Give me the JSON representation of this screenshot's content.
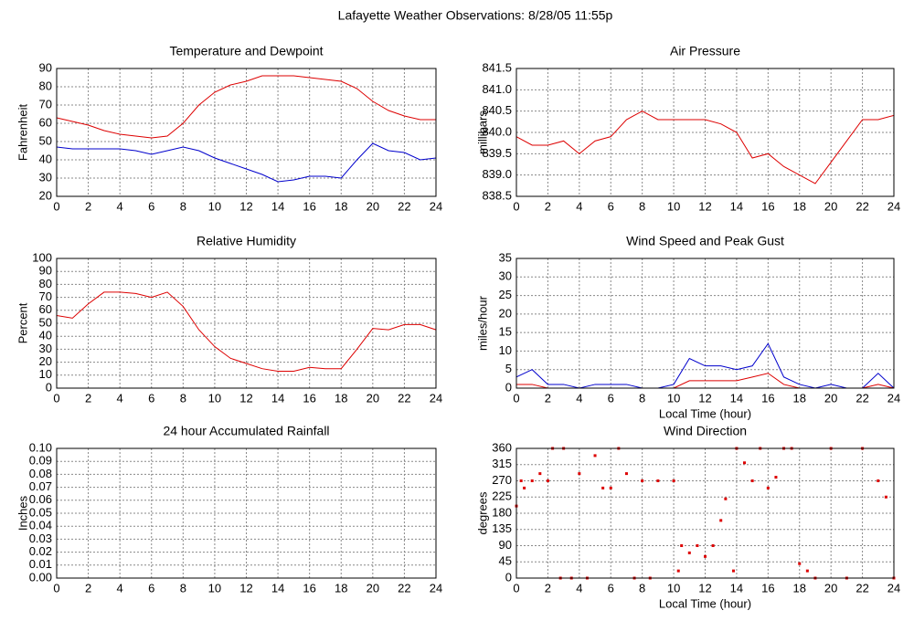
{
  "title": "Lafayette Weather Observations: 8/28/05 11:55p",
  "chart_data": [
    {
      "type": "line",
      "title": "Temperature and Dewpoint",
      "y_label": "Fahrenheit",
      "x": [
        0,
        1,
        2,
        3,
        4,
        5,
        6,
        7,
        8,
        9,
        10,
        11,
        12,
        13,
        14,
        15,
        16,
        17,
        18,
        19,
        20,
        21,
        22,
        23,
        24
      ],
      "series": [
        {
          "color": "#dd0000",
          "values": [
            63,
            61,
            59,
            56,
            54,
            53,
            52,
            53,
            60,
            70,
            77,
            81,
            83,
            86,
            86,
            86,
            85,
            84,
            83,
            79,
            72,
            67,
            64,
            62,
            62
          ]
        },
        {
          "color": "#0000cc",
          "values": [
            47,
            46,
            46,
            46,
            46,
            45,
            43,
            45,
            47,
            45,
            41,
            38,
            35,
            32,
            28,
            29,
            31,
            31,
            30,
            40,
            49,
            45,
            44,
            40,
            41
          ]
        }
      ],
      "xlim": [
        0,
        24
      ],
      "xticks": [
        0,
        2,
        4,
        6,
        8,
        10,
        12,
        14,
        16,
        18,
        20,
        22,
        24
      ],
      "ylim": [
        20,
        90
      ],
      "yticks": [
        20,
        30,
        40,
        50,
        60,
        70,
        80,
        90
      ],
      "grid": true
    },
    {
      "type": "line",
      "title": "Air Pressure",
      "y_label": "millibars",
      "x": [
        0,
        1,
        2,
        3,
        4,
        5,
        6,
        7,
        8,
        9,
        10,
        11,
        12,
        13,
        14,
        15,
        16,
        17,
        18,
        19,
        20,
        21,
        22,
        23,
        24
      ],
      "series": [
        {
          "color": "#dd0000",
          "values": [
            839.9,
            839.7,
            839.7,
            839.8,
            839.5,
            839.8,
            839.9,
            840.3,
            840.5,
            840.3,
            840.3,
            840.3,
            840.3,
            840.2,
            840.0,
            839.4,
            839.5,
            839.2,
            839.0,
            838.8,
            839.3,
            839.8,
            840.3,
            840.3,
            840.4
          ]
        }
      ],
      "xlim": [
        0,
        24
      ],
      "xticks": [
        0,
        2,
        4,
        6,
        8,
        10,
        12,
        14,
        16,
        18,
        20,
        22,
        24
      ],
      "ylim": [
        838.5,
        841.5
      ],
      "yticks": [
        838.5,
        {
          "value": 839,
          "label": "839.0"
        },
        839.5,
        {
          "value": 840,
          "label": "840.0"
        },
        840.5,
        {
          "value": 841,
          "label": "841.0"
        },
        841.5
      ],
      "grid": true
    },
    {
      "type": "line",
      "title": "Relative Humidity",
      "y_label": "Percent",
      "x": [
        0,
        1,
        2,
        3,
        4,
        5,
        6,
        7,
        8,
        9,
        10,
        11,
        12,
        13,
        14,
        15,
        16,
        17,
        18,
        19,
        20,
        21,
        22,
        23,
        24
      ],
      "series": [
        {
          "color": "#dd0000",
          "values": [
            56,
            54,
            65,
            74,
            74,
            73,
            70,
            74,
            63,
            45,
            32,
            23,
            19,
            15,
            13,
            13,
            16,
            15,
            15,
            30,
            46,
            45,
            49,
            49,
            45
          ]
        }
      ],
      "xlim": [
        0,
        24
      ],
      "xticks": [
        0,
        2,
        4,
        6,
        8,
        10,
        12,
        14,
        16,
        18,
        20,
        22,
        24
      ],
      "ylim": [
        0,
        100
      ],
      "yticks": [
        0,
        10,
        20,
        30,
        40,
        50,
        60,
        70,
        80,
        90,
        100
      ],
      "grid": true
    },
    {
      "type": "line",
      "title": "Wind Speed and Peak Gust",
      "y_label": "miles/hour",
      "x_label": "Local Time (hour)",
      "x": [
        0,
        1,
        2,
        3,
        4,
        5,
        6,
        7,
        8,
        9,
        10,
        11,
        12,
        13,
        14,
        15,
        16,
        17,
        18,
        19,
        20,
        21,
        22,
        23,
        24
      ],
      "series": [
        {
          "color": "#0000cc",
          "values": [
            3,
            5,
            1,
            1,
            0,
            1,
            1,
            1,
            0,
            0,
            1,
            8,
            6,
            6,
            5,
            6,
            12,
            3,
            1,
            0,
            1,
            0,
            0,
            4,
            0
          ]
        },
        {
          "color": "#dd0000",
          "values": [
            1,
            1,
            0,
            0,
            0,
            0,
            0,
            0,
            0,
            0,
            0,
            2,
            2,
            2,
            2,
            3,
            4,
            1,
            0,
            0,
            0,
            0,
            0,
            1,
            0
          ]
        }
      ],
      "xlim": [
        0,
        24
      ],
      "xticks": [
        0,
        2,
        4,
        6,
        8,
        10,
        12,
        14,
        16,
        18,
        20,
        22,
        24
      ],
      "ylim": [
        0,
        35
      ],
      "yticks": [
        0,
        5,
        10,
        15,
        20,
        25,
        30,
        35
      ],
      "grid": true
    },
    {
      "type": "line",
      "title": "24 hour Accumulated Rainfall",
      "y_label": "Inches",
      "x": [
        0,
        1,
        2,
        3,
        4,
        5,
        6,
        7,
        8,
        9,
        10,
        11,
        12,
        13,
        14,
        15,
        16,
        17,
        18,
        19,
        20,
        21,
        22,
        23,
        24
      ],
      "series": [
        {
          "color": "#dd0000",
          "values": [
            0,
            0,
            0,
            0,
            0,
            0,
            0,
            0,
            0,
            0,
            0,
            0,
            0,
            0,
            0,
            0,
            0,
            0,
            0,
            0,
            0,
            0,
            0,
            0,
            0
          ]
        }
      ],
      "xlim": [
        0,
        24
      ],
      "xticks": [
        0,
        2,
        4,
        6,
        8,
        10,
        12,
        14,
        16,
        18,
        20,
        22,
        24
      ],
      "ylim": [
        0,
        0.1
      ],
      "yticks": [
        {
          "value": 0,
          "label": "0.00"
        },
        0.01,
        0.02,
        0.03,
        0.04,
        0.05,
        0.06,
        0.07,
        0.08,
        0.09,
        {
          "value": 0.1,
          "label": "0.10"
        }
      ],
      "grid": true
    },
    {
      "type": "scatter",
      "title": "Wind Direction",
      "y_label": "degrees",
      "x_label": "Local Time (hour)",
      "x": [
        0,
        0.3,
        0.5,
        1,
        1.5,
        2,
        2.3,
        2.8,
        3,
        3.5,
        4,
        4.5,
        5,
        5.5,
        6,
        6.5,
        7,
        7.5,
        8,
        8.5,
        9,
        10,
        10.3,
        10.5,
        11,
        11.5,
        12,
        12.5,
        13,
        13.3,
        13.8,
        14,
        14.5,
        15,
        15.5,
        16,
        16.5,
        17,
        17.5,
        18,
        18.5,
        19,
        20,
        21,
        22,
        23,
        23.5,
        24
      ],
      "series": [
        {
          "color": "#dd0000",
          "values": [
            200,
            270,
            250,
            270,
            290,
            270,
            360,
            0,
            360,
            0,
            290,
            0,
            340,
            250,
            250,
            360,
            290,
            0,
            270,
            0,
            270,
            270,
            20,
            90,
            70,
            90,
            60,
            90,
            160,
            220,
            20,
            360,
            320,
            270,
            360,
            250,
            280,
            360,
            360,
            40,
            20,
            0,
            360,
            0,
            360,
            270,
            225,
            0
          ]
        }
      ],
      "xlim": [
        0,
        24
      ],
      "xticks": [
        0,
        2,
        4,
        6,
        8,
        10,
        12,
        14,
        16,
        18,
        20,
        22,
        24
      ],
      "ylim": [
        0,
        360
      ],
      "yticks": [
        0,
        45,
        90,
        135,
        180,
        225,
        270,
        315,
        360
      ],
      "grid": true
    }
  ]
}
